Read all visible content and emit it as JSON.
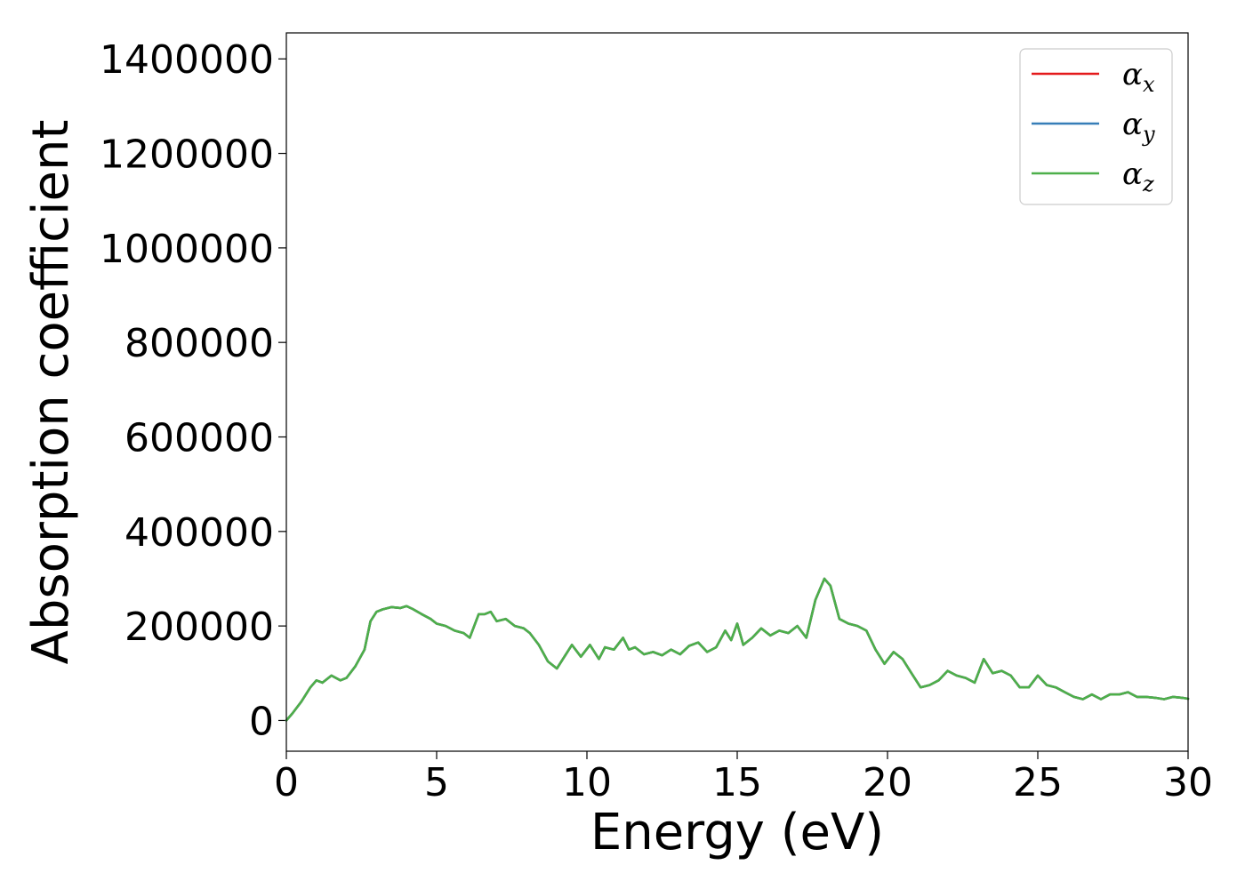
{
  "chart_data": {
    "type": "line",
    "xlabel": "Energy (eV)",
    "ylabel": "Absorption coefficient",
    "xlim": [
      0,
      30
    ],
    "ylim": [
      -65000,
      1455000
    ],
    "xticks": [
      0,
      5,
      10,
      15,
      20,
      25,
      30
    ],
    "xtick_labels": [
      "0",
      "5",
      "10",
      "15",
      "20",
      "25",
      "30"
    ],
    "yticks": [
      0,
      200000,
      400000,
      600000,
      800000,
      1000000,
      1200000,
      1400000
    ],
    "ytick_labels": [
      "0",
      "200000",
      "400000",
      "600000",
      "800000",
      "1000000",
      "1200000",
      "1400000"
    ],
    "grid": false,
    "legend_position": "top-right",
    "series": [
      {
        "name": "α_x",
        "legend_symbol": "α",
        "legend_sub": "x",
        "color": "#e41a1c"
      },
      {
        "name": "α_y",
        "legend_symbol": "α",
        "legend_sub": "y",
        "color": "#377eb8"
      },
      {
        "name": "α_z",
        "legend_symbol": "α",
        "legend_sub": "z",
        "color": "#4daf4a"
      }
    ],
    "x": [
      0,
      0.2,
      0.5,
      0.8,
      1.0,
      1.2,
      1.5,
      1.8,
      2.0,
      2.3,
      2.6,
      2.8,
      3.0,
      3.2,
      3.5,
      3.8,
      4.0,
      4.2,
      4.5,
      4.8,
      5.0,
      5.3,
      5.6,
      5.9,
      6.1,
      6.4,
      6.6,
      6.8,
      7.0,
      7.3,
      7.6,
      7.9,
      8.1,
      8.4,
      8.7,
      9.0,
      9.2,
      9.5,
      9.8,
      10.1,
      10.4,
      10.6,
      10.9,
      11.2,
      11.4,
      11.6,
      11.9,
      12.2,
      12.5,
      12.8,
      13.1,
      13.4,
      13.7,
      14.0,
      14.3,
      14.6,
      14.8,
      15.0,
      15.2,
      15.5,
      15.8,
      16.1,
      16.4,
      16.7,
      17.0,
      17.3,
      17.6,
      17.9,
      18.1,
      18.4,
      18.7,
      19.0,
      19.3,
      19.6,
      19.9,
      20.2,
      20.5,
      20.8,
      21.1,
      21.4,
      21.7,
      22.0,
      22.3,
      22.6,
      22.9,
      23.2,
      23.5,
      23.8,
      24.1,
      24.4,
      24.7,
      25.0,
      25.3,
      25.6,
      25.9,
      26.2,
      26.5,
      26.8,
      27.1,
      27.4,
      27.7,
      28.0,
      28.3,
      28.6,
      28.9,
      29.2,
      29.5,
      29.8,
      30.0
    ],
    "y": [
      0,
      15000,
      40000,
      70000,
      85000,
      80000,
      95000,
      85000,
      90000,
      115000,
      150000,
      210000,
      230000,
      235000,
      240000,
      238000,
      242000,
      236000,
      225000,
      215000,
      205000,
      200000,
      190000,
      185000,
      175000,
      225000,
      225000,
      230000,
      210000,
      215000,
      200000,
      195000,
      185000,
      160000,
      125000,
      110000,
      130000,
      160000,
      135000,
      160000,
      130000,
      155000,
      150000,
      175000,
      150000,
      155000,
      140000,
      145000,
      138000,
      150000,
      140000,
      158000,
      165000,
      145000,
      155000,
      190000,
      170000,
      205000,
      160000,
      175000,
      195000,
      180000,
      190000,
      185000,
      200000,
      175000,
      255000,
      300000,
      285000,
      215000,
      205000,
      200000,
      190000,
      150000,
      120000,
      145000,
      130000,
      100000,
      70000,
      75000,
      85000,
      105000,
      95000,
      90000,
      80000,
      130000,
      100000,
      105000,
      95000,
      70000,
      70000,
      95000,
      75000,
      70000,
      60000,
      50000,
      45000,
      55000,
      45000,
      55000,
      55000,
      60000,
      50000,
      50000,
      48000,
      45000,
      50000,
      48000,
      46000
    ]
  }
}
